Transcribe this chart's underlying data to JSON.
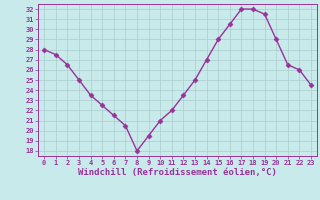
{
  "x": [
    0,
    1,
    2,
    3,
    4,
    5,
    6,
    7,
    8,
    9,
    10,
    11,
    12,
    13,
    14,
    15,
    16,
    17,
    18,
    19,
    20,
    21,
    22,
    23
  ],
  "y": [
    28,
    27.5,
    26.5,
    25,
    23.5,
    22.5,
    21.5,
    20.5,
    18,
    19.5,
    21,
    22,
    23.5,
    25,
    27,
    29,
    30.5,
    32,
    32,
    31.5,
    29,
    26.5,
    26,
    24.5
  ],
  "line_color": "#993399",
  "marker": "D",
  "marker_size": 2.5,
  "bg_color": "#c8eaea",
  "grid_color": "#aacccc",
  "xlabel": "Windchill (Refroidissement éolien,°C)",
  "xlabel_color": "#993399",
  "ylim": [
    17.5,
    32.5
  ],
  "xlim": [
    -0.5,
    23.5
  ],
  "yticks": [
    18,
    19,
    20,
    21,
    22,
    23,
    24,
    25,
    26,
    27,
    28,
    29,
    30,
    31,
    32
  ],
  "xticks": [
    0,
    1,
    2,
    3,
    4,
    5,
    6,
    7,
    8,
    9,
    10,
    11,
    12,
    13,
    14,
    15,
    16,
    17,
    18,
    19,
    20,
    21,
    22,
    23
  ],
  "tick_color": "#993399",
  "tick_fontsize": 5.0,
  "xlabel_fontsize": 6.5,
  "line_width": 1.0,
  "spine_color": "#993399",
  "bottom_bg_color": "#9966aa"
}
